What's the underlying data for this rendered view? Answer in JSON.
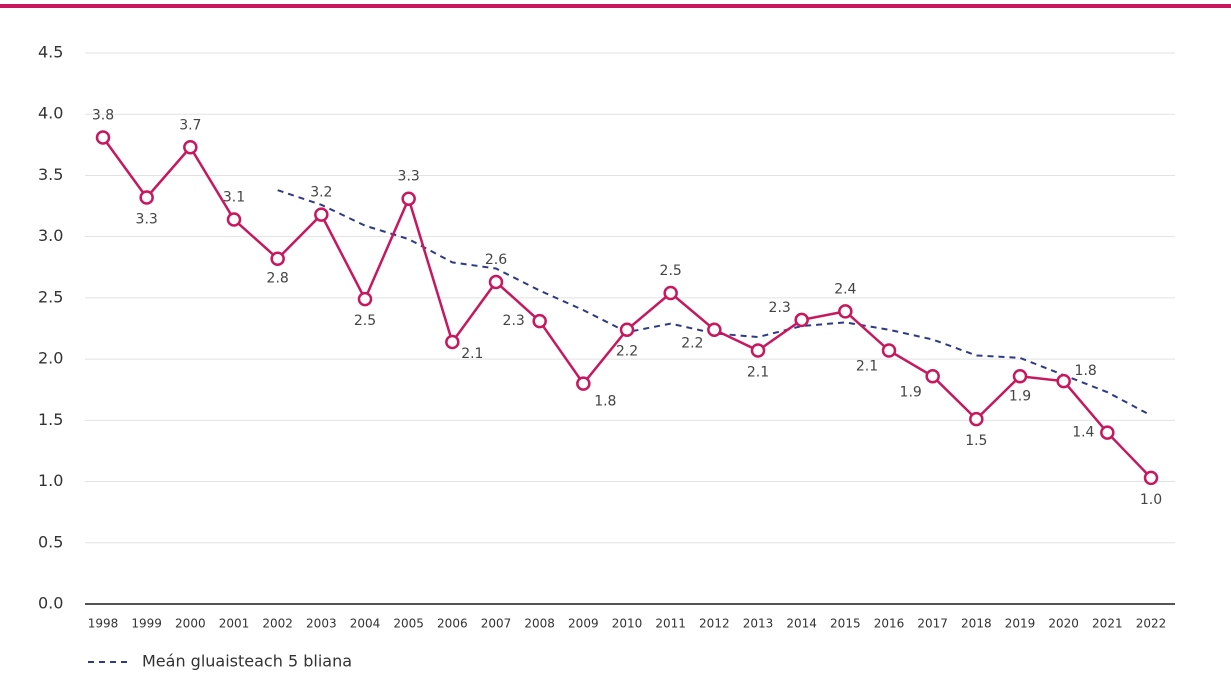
{
  "chart_data": {
    "type": "line",
    "categories": [
      "1998",
      "1999",
      "2000",
      "2001",
      "2002",
      "2003",
      "2004",
      "2005",
      "2006",
      "2007",
      "2008",
      "2009",
      "2010",
      "2011",
      "2012",
      "2013",
      "2014",
      "2015",
      "2016",
      "2017",
      "2018",
      "2019",
      "2020",
      "2021",
      "2022"
    ],
    "series": [
      {
        "color": "#c8175d",
        "values": [
          3.81,
          3.32,
          3.73,
          3.14,
          2.82,
          3.18,
          2.49,
          3.31,
          2.14,
          2.63,
          2.31,
          1.8,
          2.24,
          2.54,
          2.24,
          2.07,
          2.32,
          2.39,
          2.07,
          1.86,
          1.51,
          1.86,
          1.82,
          1.4,
          1.03
        ],
        "value_labels": [
          "3.8",
          "3.3",
          "3.7",
          "3.1",
          "2.8",
          "3.2",
          "2.5",
          "3.3",
          "2.1",
          "2.6",
          "2.3",
          "1.8",
          "2.2",
          "2.5",
          "2.2",
          "2.1",
          "2.3",
          "2.4",
          "2.1",
          "1.9",
          "1.5",
          "1.9",
          "1.8",
          "1.4",
          "1.0"
        ]
      },
      {
        "name": "Meán gluaisteach 5 bliana",
        "color": "#2e3a87",
        "dashed": true,
        "values": [
          null,
          null,
          null,
          null,
          3.38,
          3.26,
          3.09,
          2.98,
          2.79,
          2.74,
          2.56,
          2.4,
          2.22,
          2.29,
          2.21,
          2.18,
          2.27,
          2.3,
          2.24,
          2.16,
          2.03,
          2.01,
          1.87,
          1.73,
          1.54
        ]
      }
    ],
    "ylim": [
      0,
      4.5
    ],
    "yticks": [
      {
        "value": 0,
        "label": "0.0"
      },
      0.5,
      {
        "value": 1,
        "label": "1.0"
      },
      1.5,
      {
        "value": 2,
        "label": "2.0"
      },
      2.5,
      {
        "value": 3,
        "label": "3.0"
      },
      3.5,
      {
        "value": 4,
        "label": "4.0"
      },
      4.5
    ],
    "grid": true,
    "legend": "bottom-left"
  }
}
